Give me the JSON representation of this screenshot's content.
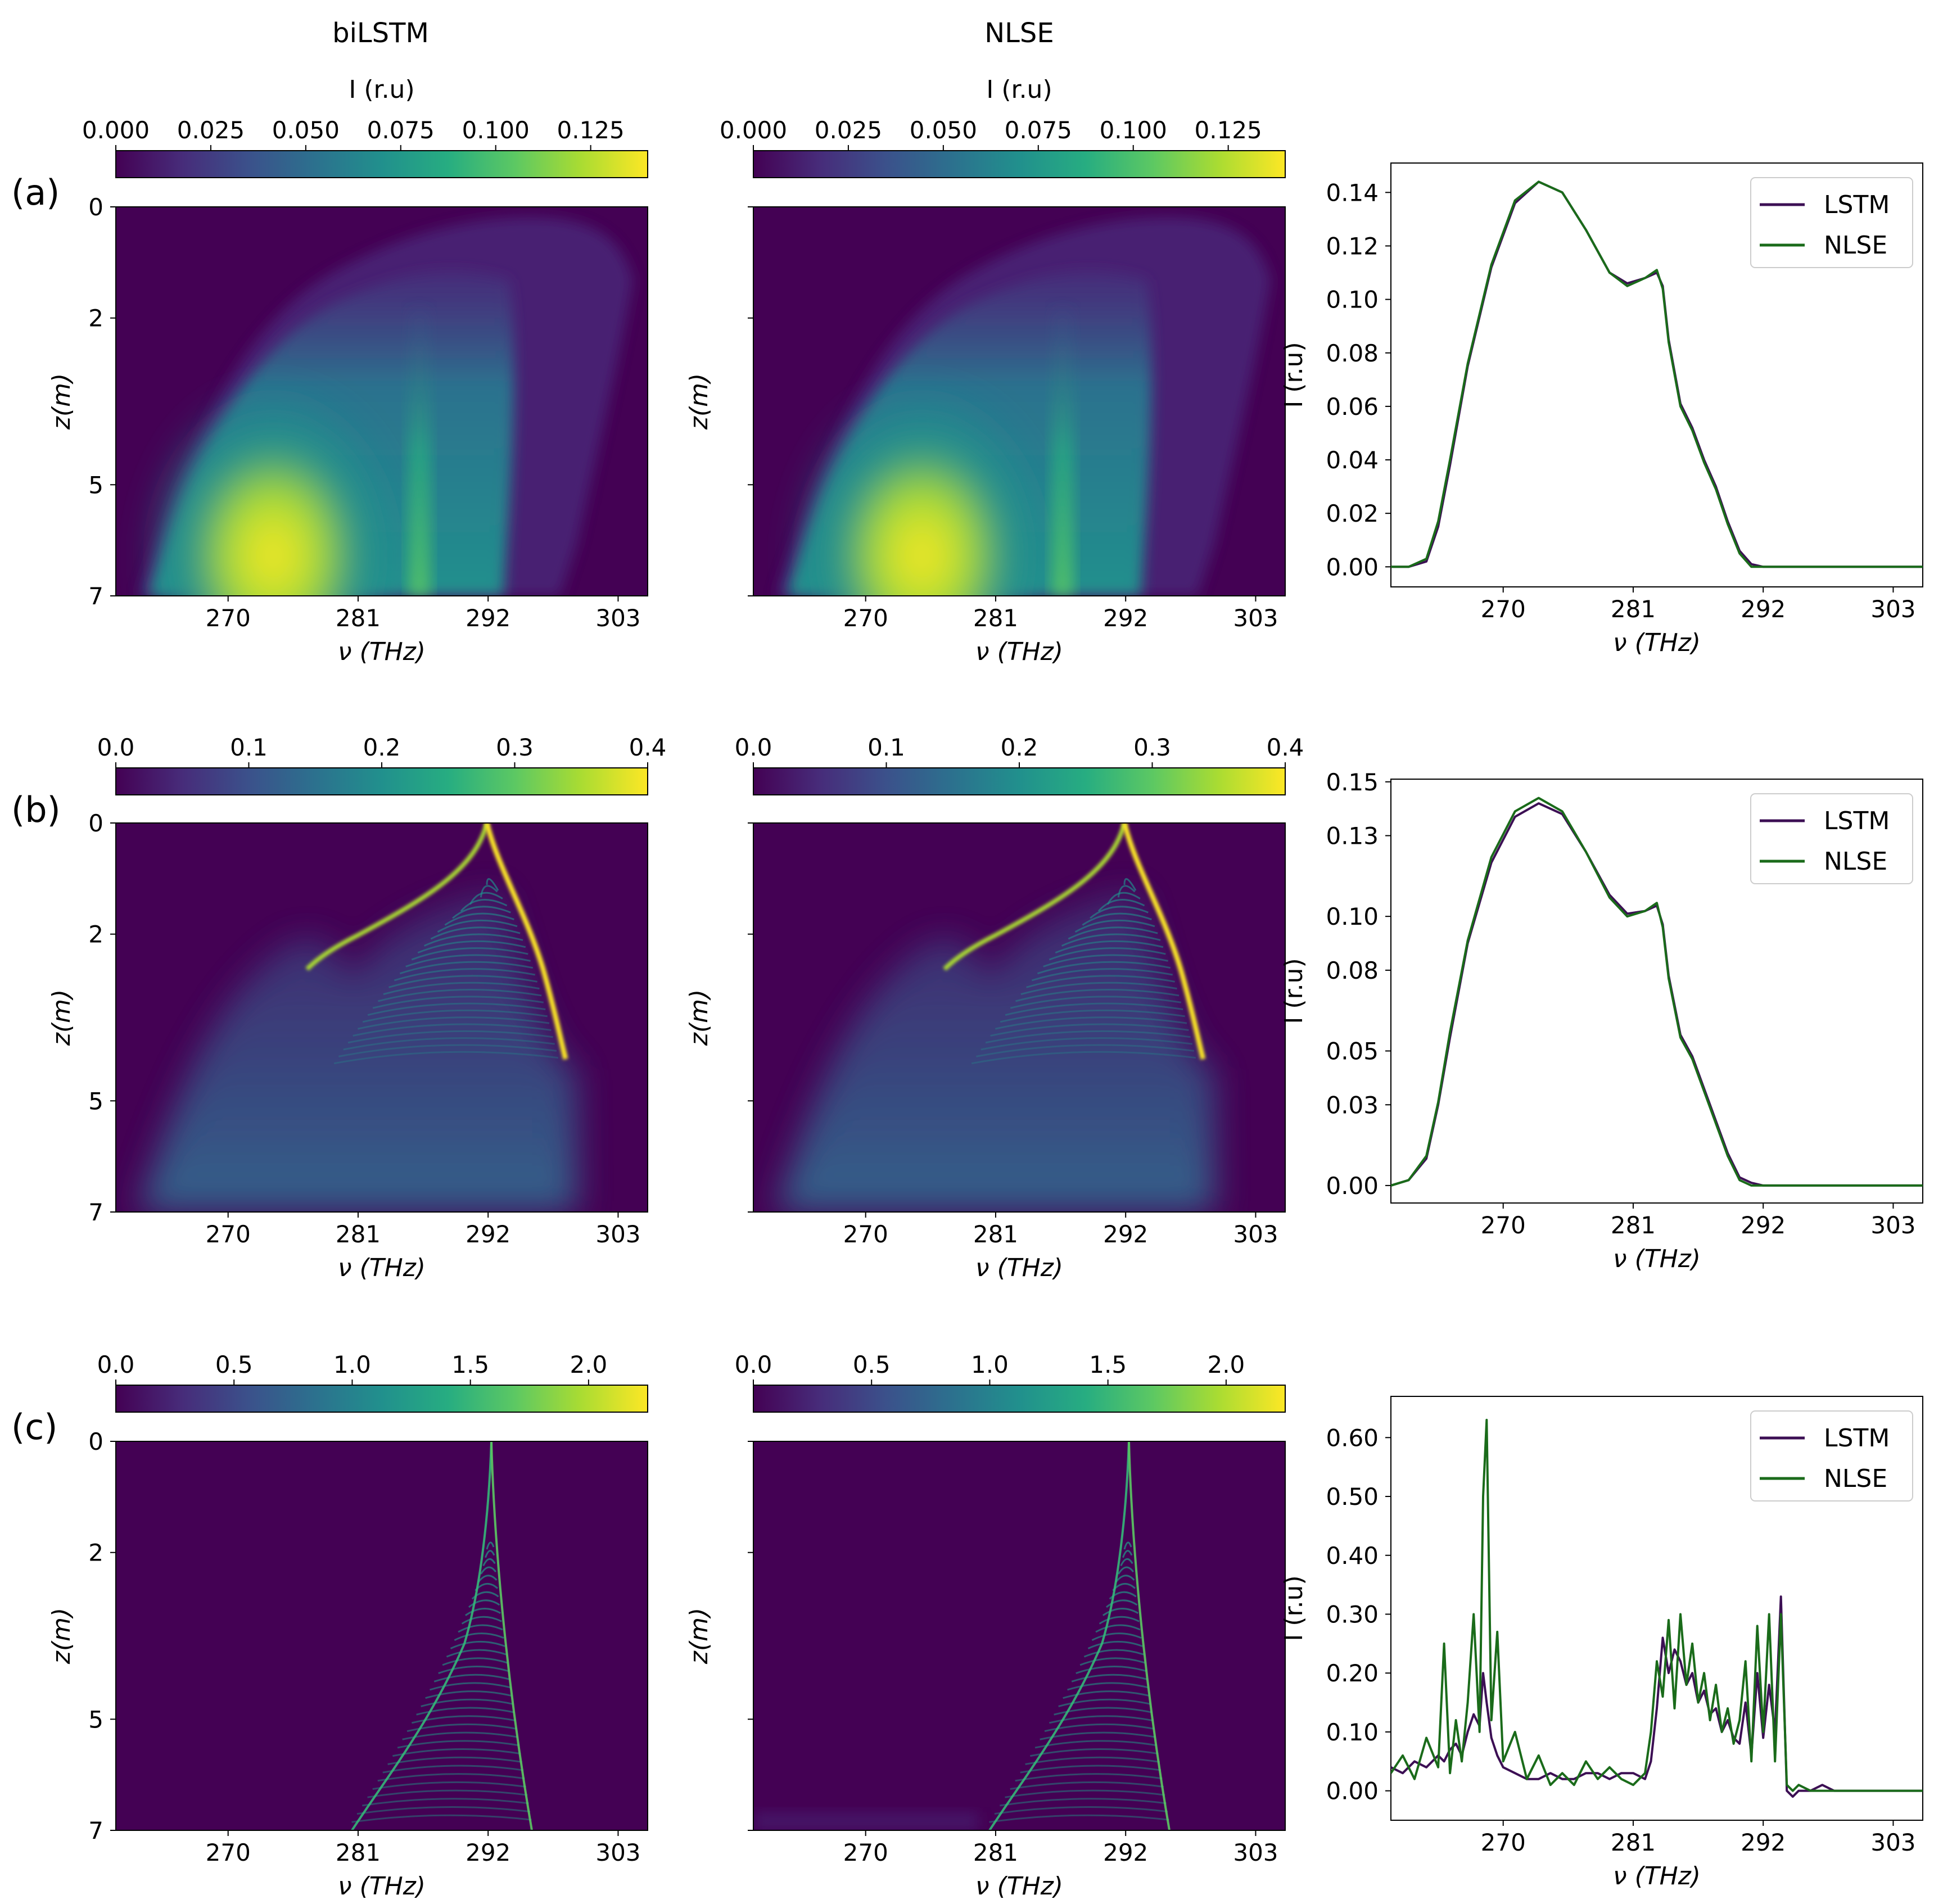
{
  "figure": {
    "column_titles": [
      "biLSTM",
      "NLSE"
    ],
    "row_labels": [
      "(a)",
      "(b)",
      "(c)"
    ],
    "colormap_stops": [
      "#440154",
      "#472c7a",
      "#3b518b",
      "#2c718e",
      "#21908d",
      "#27ad81",
      "#5cc863",
      "#aadc32",
      "#fde725"
    ]
  },
  "chart_data": [
    {
      "row": "(a)",
      "colorbar": {
        "label": "I (r.u)",
        "range": [
          0,
          0.14
        ],
        "ticks": [
          "0.000",
          "0.025",
          "0.050",
          "0.075",
          "0.100",
          "0.125"
        ]
      },
      "heatmaps": [
        {
          "type": "heatmap",
          "title": "biLSTM",
          "xlabel": "ν (THz)",
          "ylabel": "z(m)",
          "xticks": [
            "270",
            "281",
            "292",
            "303"
          ],
          "yticks": [
            "0",
            "2",
            "5",
            "7"
          ],
          "xlim": [
            260.5,
            305.5
          ],
          "ylim": [
            0,
            7
          ],
          "feature": "broad spectrum centered near 272 THz growing with z"
        },
        {
          "type": "heatmap",
          "title": "NLSE",
          "xlabel": "ν (THz)",
          "ylabel": "z(m)",
          "xticks": [
            "270",
            "281",
            "292",
            "303"
          ],
          "yticks": [],
          "xlim": [
            260.5,
            305.5
          ],
          "ylim": [
            0,
            7
          ],
          "feature": "broad spectrum centered near 272 THz growing with z"
        }
      ],
      "line": {
        "type": "line",
        "xlabel": "ν (THz)",
        "ylabel": "I (r.u)",
        "xticks": [
          "270",
          "281",
          "292",
          "303"
        ],
        "yticks": [
          "0.00",
          "0.02",
          "0.04",
          "0.06",
          "0.08",
          "0.10",
          "0.12",
          "0.14"
        ],
        "xlim": [
          260.5,
          305.5
        ],
        "ylim": [
          -0.0075,
          0.151
        ],
        "legend": [
          "LSTM",
          "NLSE"
        ],
        "x": [
          260.5,
          262,
          263.5,
          264.5,
          265.5,
          267,
          269,
          271,
          273,
          275,
          277,
          279,
          280.5,
          282,
          283,
          283.5,
          284,
          285,
          286,
          287,
          288,
          289,
          290,
          291,
          292,
          294,
          297,
          300,
          303,
          305.5
        ],
        "series": [
          {
            "name": "LSTM",
            "color": "#3c0f54",
            "values": [
              0.0,
              0.0,
              0.002,
              0.015,
              0.038,
              0.075,
              0.112,
              0.136,
              0.144,
              0.14,
              0.126,
              0.11,
              0.106,
              0.108,
              0.11,
              0.105,
              0.085,
              0.061,
              0.052,
              0.04,
              0.03,
              0.017,
              0.006,
              0.001,
              0.0,
              0.0,
              0.0,
              0.0,
              0.0,
              0.0
            ]
          },
          {
            "name": "NLSE",
            "color": "#1a6b1a",
            "values": [
              0.0,
              0.0,
              0.003,
              0.017,
              0.04,
              0.076,
              0.113,
              0.137,
              0.144,
              0.14,
              0.126,
              0.11,
              0.105,
              0.108,
              0.111,
              0.104,
              0.084,
              0.06,
              0.051,
              0.039,
              0.029,
              0.016,
              0.005,
              0.0,
              0.0,
              0.0,
              0.0,
              0.0,
              0.0,
              0.0
            ]
          }
        ]
      }
    },
    {
      "row": "(b)",
      "colorbar": {
        "label": "",
        "range": [
          0,
          0.4
        ],
        "ticks": [
          "0.0",
          "0.1",
          "0.2",
          "0.3",
          "0.4"
        ]
      },
      "heatmaps": [
        {
          "type": "heatmap",
          "title": "biLSTM",
          "xlabel": "ν (THz)",
          "ylabel": "z(m)",
          "xticks": [
            "270",
            "281",
            "292",
            "303"
          ],
          "yticks": [
            "0",
            "2",
            "5",
            "7"
          ],
          "xlim": [
            260.5,
            305.5
          ],
          "ylim": [
            0,
            7
          ],
          "feature": "narrow line at 292 THz splitting into fringed fan, broad low-intensity background"
        },
        {
          "type": "heatmap",
          "title": "NLSE",
          "xlabel": "ν (THz)",
          "ylabel": "z(m)",
          "xticks": [
            "270",
            "281",
            "292",
            "303"
          ],
          "yticks": [],
          "xlim": [
            260.5,
            305.5
          ],
          "ylim": [
            0,
            7
          ],
          "feature": "narrow line at 292 THz splitting into fringed fan, broad low-intensity background"
        }
      ],
      "line": {
        "type": "line",
        "xlabel": "ν (THz)",
        "ylabel": "I (r.u)",
        "xticks": [
          "270",
          "281",
          "292",
          "303"
        ],
        "yticks": [
          "0.00",
          "0.03",
          "0.05",
          "0.08",
          "0.10",
          "0.13",
          "0.15"
        ],
        "xlim": [
          260.5,
          305.5
        ],
        "ylim": [
          -0.0065,
          0.151
        ],
        "legend": [
          "LSTM",
          "NLSE"
        ],
        "x": [
          260.5,
          262,
          263.5,
          264.5,
          265.5,
          267,
          269,
          271,
          273,
          275,
          277,
          279,
          280.5,
          282,
          283,
          283.5,
          284,
          285,
          286,
          287,
          288,
          289,
          290,
          291,
          292,
          294,
          297,
          300,
          303,
          305.5
        ],
        "series": [
          {
            "name": "LSTM",
            "color": "#3c0f54",
            "values": [
              0.0,
              0.002,
              0.01,
              0.03,
              0.055,
              0.09,
              0.12,
              0.137,
              0.142,
              0.138,
              0.124,
              0.108,
              0.101,
              0.102,
              0.104,
              0.097,
              0.078,
              0.056,
              0.048,
              0.036,
              0.024,
              0.012,
              0.003,
              0.001,
              0.0,
              0.0,
              0.0,
              0.0,
              0.0,
              0.0
            ]
          },
          {
            "name": "NLSE",
            "color": "#1a6b1a",
            "values": [
              0.0,
              0.002,
              0.011,
              0.031,
              0.057,
              0.091,
              0.122,
              0.139,
              0.144,
              0.139,
              0.124,
              0.107,
              0.1,
              0.102,
              0.105,
              0.096,
              0.077,
              0.055,
              0.047,
              0.035,
              0.023,
              0.011,
              0.002,
              0.0,
              0.0,
              0.0,
              0.0,
              0.0,
              0.0,
              0.0
            ]
          }
        ]
      }
    },
    {
      "row": "(c)",
      "colorbar": {
        "label": "",
        "range": [
          0,
          2.25
        ],
        "ticks": [
          "0.0",
          "0.5",
          "1.0",
          "1.5",
          "2.0"
        ]
      },
      "heatmaps": [
        {
          "type": "heatmap",
          "title": "biLSTM",
          "xlabel": "ν (THz)",
          "ylabel": "z(m)",
          "xticks": [
            "270",
            "281",
            "292",
            "303"
          ],
          "yticks": [
            "0",
            "2",
            "5",
            "7"
          ],
          "xlim": [
            260.5,
            305.5
          ],
          "ylim": [
            0,
            7
          ],
          "feature": "intense narrow line at 292 THz expanding into fringed fan toward 281 and 296 THz"
        },
        {
          "type": "heatmap",
          "title": "NLSE",
          "xlabel": "ν (THz)",
          "ylabel": "z(m)",
          "xticks": [
            "270",
            "281",
            "292",
            "303"
          ],
          "yticks": [],
          "xlim": [
            260.5,
            305.5
          ],
          "ylim": [
            0,
            7
          ],
          "feature": "intense narrow line at 292 THz expanding into fringed fan toward 281 and 296 THz"
        }
      ],
      "line": {
        "type": "line",
        "xlabel": "ν (THz)",
        "ylabel": "I (r.u)",
        "xticks": [
          "270",
          "281",
          "292",
          "303"
        ],
        "yticks": [
          "0.00",
          "0.10",
          "0.20",
          "0.30",
          "0.40",
          "0.50",
          "0.60"
        ],
        "xlim": [
          260.5,
          305.5
        ],
        "ylim": [
          -0.05,
          0.67
        ],
        "legend": [
          "LSTM",
          "NLSE"
        ],
        "x": [
          260.5,
          261.5,
          262.5,
          263.5,
          264.5,
          265,
          265.5,
          266,
          266.5,
          267,
          267.5,
          268,
          268.3,
          268.6,
          269,
          269.5,
          270,
          271,
          272,
          273,
          274,
          275,
          276,
          277,
          278,
          279,
          280,
          281,
          282,
          282.5,
          283,
          283.5,
          284,
          284.5,
          285,
          285.5,
          286,
          286.5,
          287,
          287.5,
          288,
          288.5,
          289,
          289.5,
          290,
          290.5,
          291,
          291.5,
          292,
          292.5,
          293,
          293.5,
          294,
          294.5,
          295,
          296,
          297,
          298,
          300,
          302,
          305.5
        ],
        "series": [
          {
            "name": "LSTM",
            "color": "#3c0f54",
            "values": [
              0.04,
              0.03,
              0.05,
              0.04,
              0.06,
              0.05,
              0.07,
              0.08,
              0.06,
              0.1,
              0.13,
              0.11,
              0.2,
              0.15,
              0.09,
              0.06,
              0.04,
              0.03,
              0.02,
              0.02,
              0.03,
              0.02,
              0.02,
              0.03,
              0.03,
              0.02,
              0.03,
              0.03,
              0.02,
              0.05,
              0.14,
              0.26,
              0.2,
              0.24,
              0.22,
              0.18,
              0.2,
              0.15,
              0.17,
              0.13,
              0.14,
              0.1,
              0.12,
              0.09,
              0.08,
              0.15,
              0.06,
              0.2,
              0.09,
              0.18,
              0.1,
              0.33,
              0.0,
              -0.01,
              0.0,
              0.0,
              0.01,
              0.0,
              0.0,
              0.0,
              0.0
            ]
          },
          {
            "name": "NLSE",
            "color": "#1a6b1a",
            "values": [
              0.03,
              0.06,
              0.02,
              0.09,
              0.04,
              0.25,
              0.03,
              0.12,
              0.05,
              0.15,
              0.3,
              0.1,
              0.5,
              0.63,
              0.12,
              0.27,
              0.05,
              0.1,
              0.02,
              0.06,
              0.01,
              0.03,
              0.01,
              0.05,
              0.02,
              0.04,
              0.02,
              0.01,
              0.03,
              0.1,
              0.22,
              0.16,
              0.29,
              0.14,
              0.3,
              0.18,
              0.25,
              0.15,
              0.2,
              0.12,
              0.18,
              0.1,
              0.14,
              0.08,
              0.12,
              0.22,
              0.05,
              0.28,
              0.1,
              0.3,
              0.05,
              0.3,
              0.01,
              0.0,
              0.01,
              0.0,
              0.0,
              0.0,
              0.0,
              0.0,
              0.0
            ]
          }
        ]
      }
    }
  ]
}
